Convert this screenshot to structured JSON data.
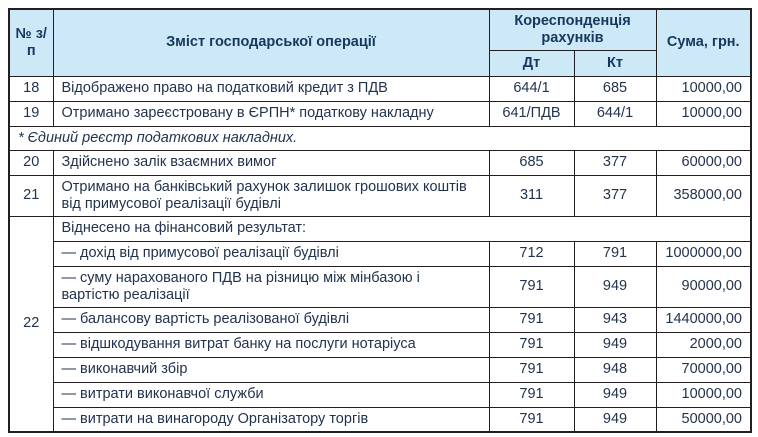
{
  "colors": {
    "header_bg": "#cde9f7",
    "header_text": "#16375e",
    "body_text": "#22334e",
    "border": "#231f20"
  },
  "table": {
    "header": {
      "col_num": "№ з/п",
      "col_content": "Зміст господарської операції",
      "col_correspondence": "Кореспонденція рахунків",
      "col_dt": "Дт",
      "col_kt": "Кт",
      "col_sum": "Сума, грн."
    },
    "rows": [
      {
        "type": "entry",
        "num": "18",
        "content": "Відображено право на податковий кредит з ПДВ",
        "dt": "644/1",
        "kt": "685",
        "sum": "10000,00"
      },
      {
        "type": "entry",
        "num": "19",
        "content": "Отримано зареєстровану в ЄРПН* податкову накладну",
        "dt": "641/ПДВ",
        "kt": "644/1",
        "sum": "10000,00"
      },
      {
        "type": "note",
        "text": "* Єдиний реєстр податкових накладних."
      },
      {
        "type": "entry",
        "num": "20",
        "content": "Здійснено залік взаємних вимог",
        "dt": "685",
        "kt": "377",
        "sum": "60000,00"
      },
      {
        "type": "entry",
        "num": "21",
        "content": "Отримано на банківський рахунок залишок грошових коштів від примусової реалізації будівлі",
        "dt": "311",
        "kt": "377",
        "sum": "358000,00"
      },
      {
        "type": "group",
        "num": "22",
        "label": "Віднесено на фінансовий результат:",
        "items": [
          {
            "content": "— дохід від примусової реалізації будівлі",
            "dt": "712",
            "kt": "791",
            "sum": "1000000,00"
          },
          {
            "content": "— суму нарахованого ПДВ на різницю між мінбазою і вартістю реалізації",
            "dt": "791",
            "kt": "949",
            "sum": "90000,00"
          },
          {
            "content": "— балансову вартість реалізованої будівлі",
            "dt": "791",
            "kt": "943",
            "sum": "1440000,00"
          },
          {
            "content": "— відшкодування витрат банку на послуги нотаріуса",
            "dt": "791",
            "kt": "949",
            "sum": "2000,00"
          },
          {
            "content": "— виконавчий збір",
            "dt": "791",
            "kt": "948",
            "sum": "70000,00"
          },
          {
            "content": "— витрати виконавчої служби",
            "dt": "791",
            "kt": "949",
            "sum": "10000,00"
          },
          {
            "content": "— витрати на винагороду Організатору торгів",
            "dt": "791",
            "kt": "949",
            "sum": "50000,00"
          }
        ]
      }
    ]
  }
}
